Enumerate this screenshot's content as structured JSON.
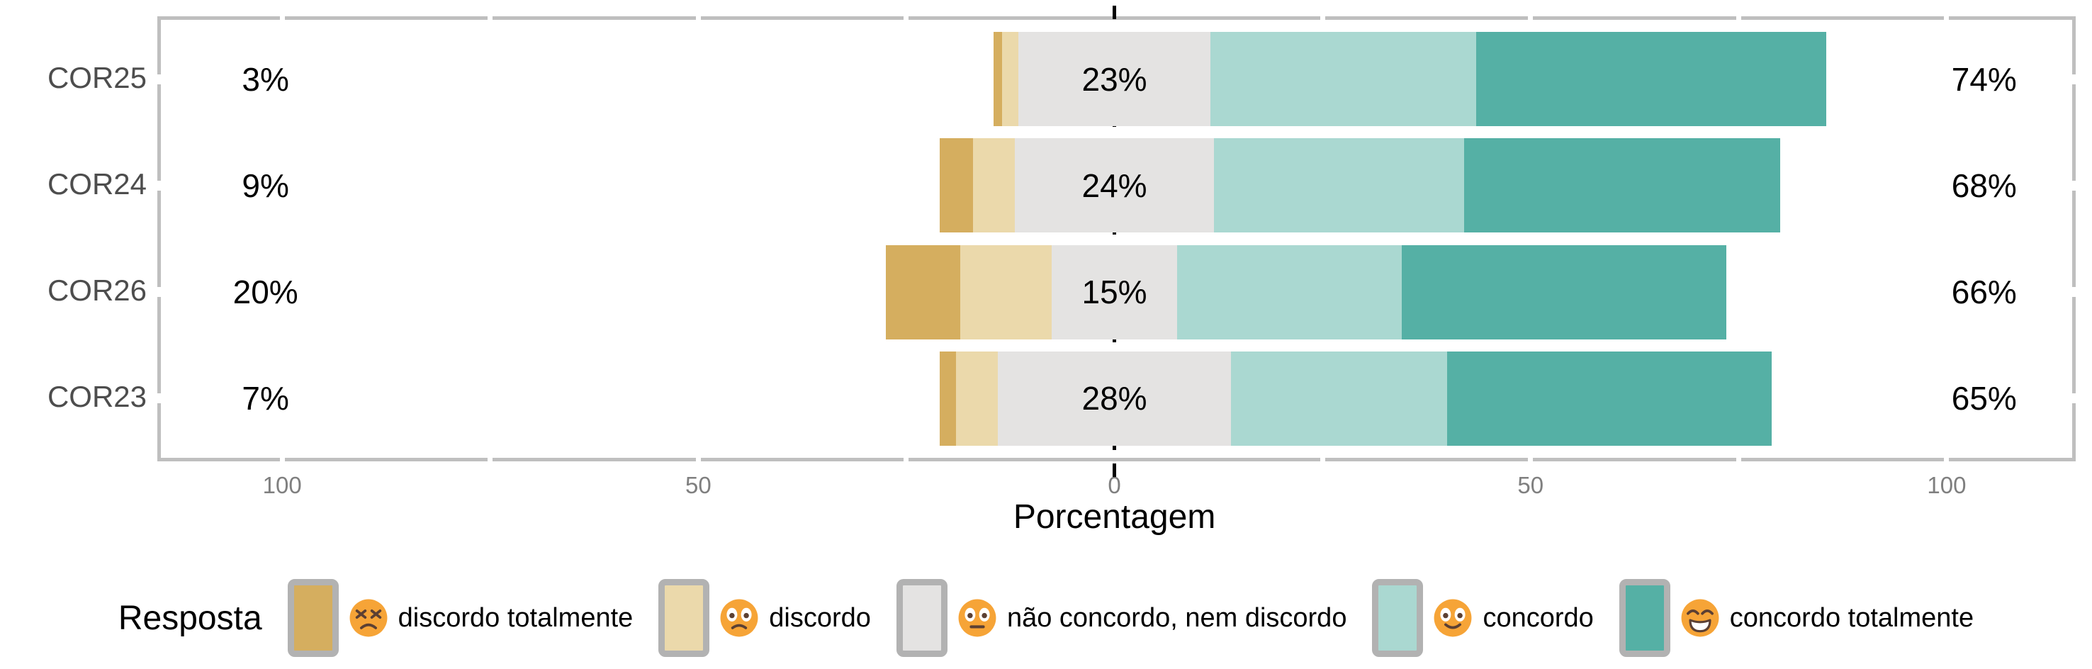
{
  "chart_data": {
    "type": "bar",
    "subtype": "diverging-stacked-likert",
    "xlabel": "Porcentagem",
    "categories": [
      "COR25",
      "COR24",
      "COR26",
      "COR23"
    ],
    "series": [
      {
        "name": "discordo totalmente",
        "color": "#D5AE5F",
        "emoji": "persevering-face",
        "values": [
          1,
          4,
          9,
          2
        ]
      },
      {
        "name": "discordo",
        "color": "#EBD9AB",
        "emoji": "frowning-face",
        "values": [
          2,
          5,
          11,
          5
        ]
      },
      {
        "name": "não concordo, nem discordo",
        "color": "#E4E3E2",
        "emoji": "neutral-face",
        "values": [
          23,
          24,
          15,
          28
        ]
      },
      {
        "name": "concordo",
        "color": "#AAD8D1",
        "emoji": "slightly-smiling-face",
        "values": [
          32,
          30,
          27,
          26
        ]
      },
      {
        "name": "concordo totalmente",
        "color": "#55B0A5",
        "emoji": "grinning-face",
        "values": [
          42,
          38,
          39,
          39
        ]
      }
    ],
    "row_totals": {
      "left": [
        "3%",
        "9%",
        "20%",
        "7%"
      ],
      "center": [
        "23%",
        "24%",
        "15%",
        "28%"
      ],
      "right": [
        "74%",
        "68%",
        "66%",
        "65%"
      ]
    },
    "x_ticks": [
      {
        "value": -100,
        "label": "100"
      },
      {
        "value": -50,
        "label": "50"
      },
      {
        "value": 0,
        "label": "0"
      },
      {
        "value": 50,
        "label": "50"
      },
      {
        "value": 100,
        "label": "100"
      }
    ],
    "minor_tick_values": [
      -100,
      -75,
      -50,
      -25,
      25,
      50,
      75,
      100
    ],
    "xlim": [
      -115,
      115.5
    ],
    "zero_line": {
      "x": 0,
      "style": "dashed",
      "color": "#000000"
    },
    "legend": {
      "title": "Resposta",
      "position": "bottom"
    },
    "grid": "off"
  },
  "colors": {
    "panel_border": "#BFBFBF",
    "axis_text": "#7F7F7F",
    "row_label_text": "#4D4D4D",
    "bar_label_text": "#000000",
    "legend_swatch_border": "#B2B2B2",
    "emoji_face": "#F6A437",
    "emoji_features": "#5C4033",
    "background": "#FFFFFF"
  }
}
